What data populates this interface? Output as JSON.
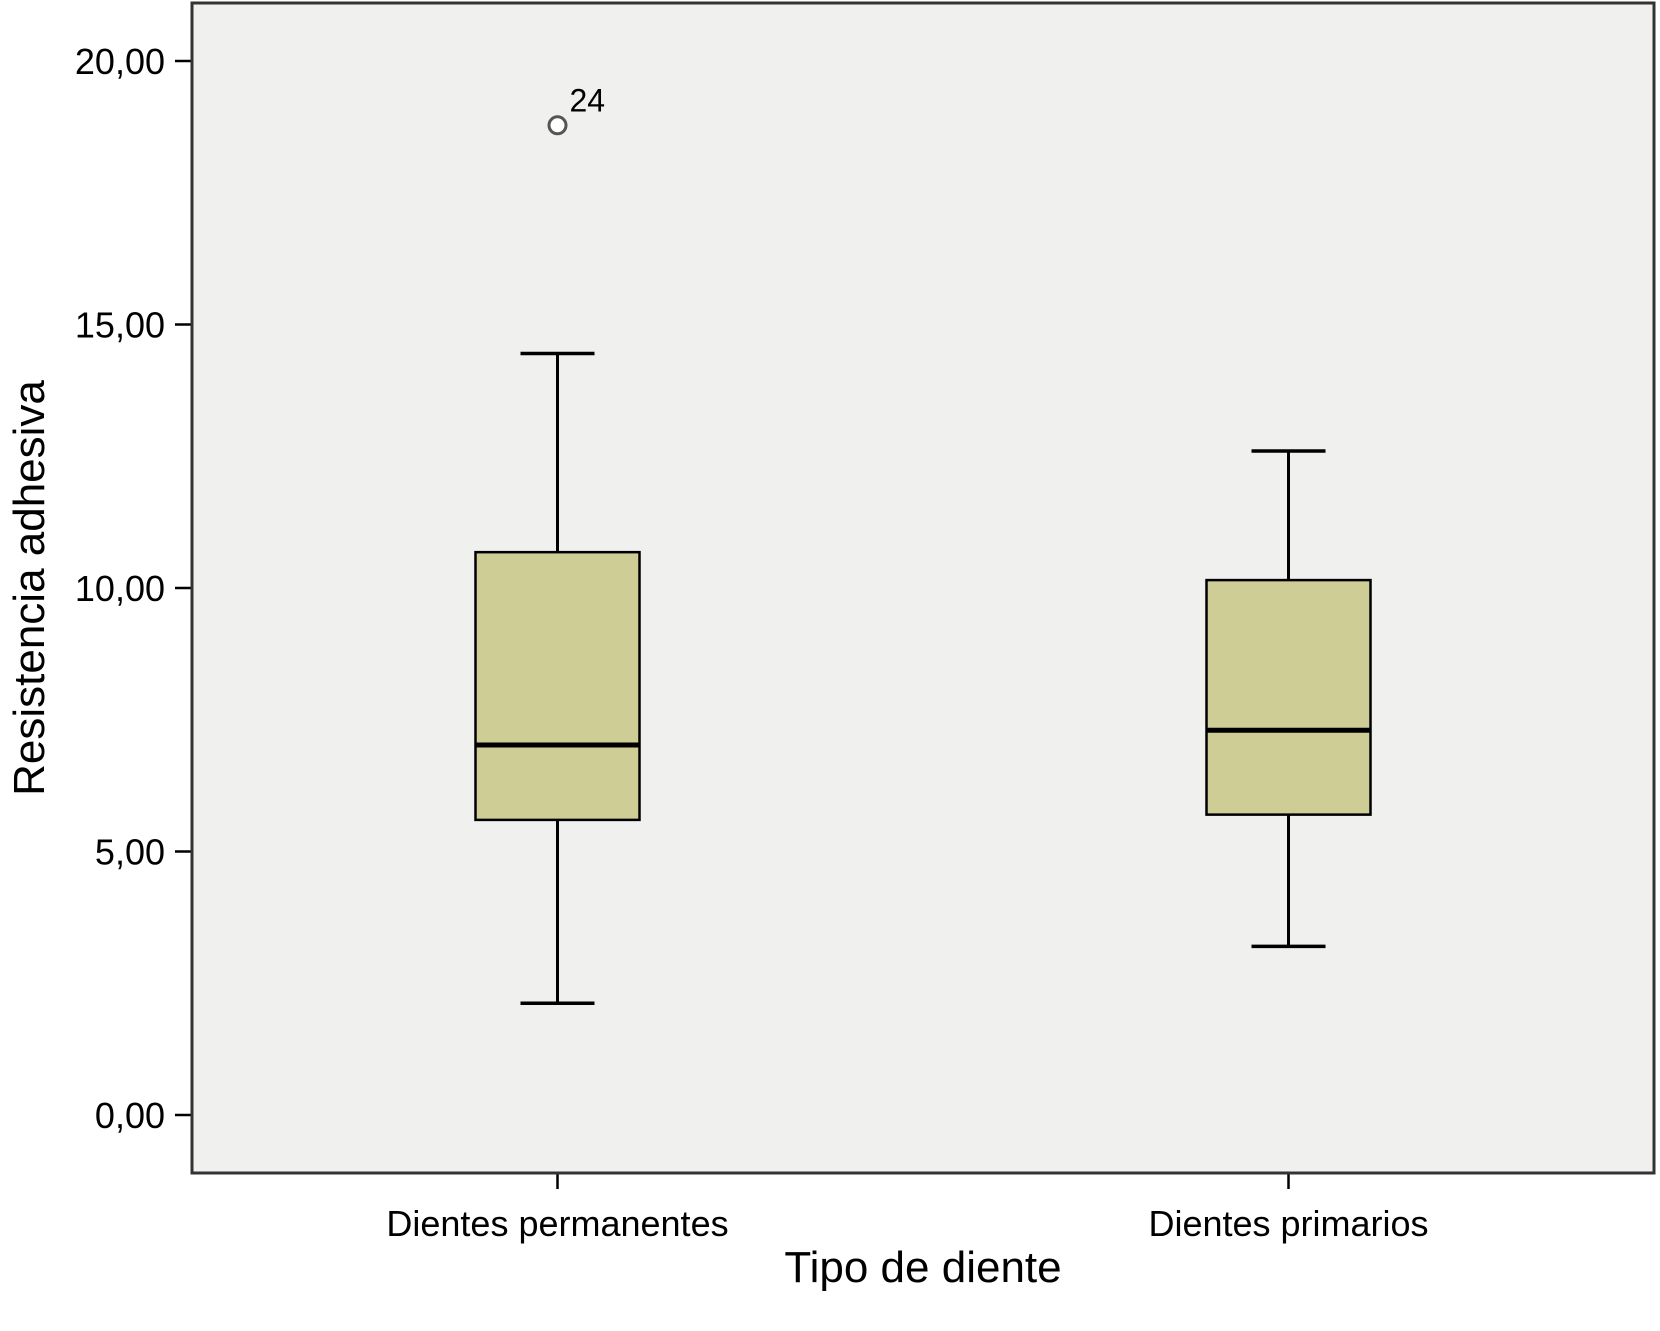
{
  "chart_data": {
    "type": "boxplot",
    "title": "",
    "xlabel": "Tipo de diente",
    "ylabel": "Resistencia adhesiva",
    "ylim": [
      -1.1,
      21.1
    ],
    "yticks": [
      0,
      5,
      10,
      15,
      20
    ],
    "ytick_labels": [
      "0,00",
      "5,00",
      "10,00",
      "15,00",
      "20,00"
    ],
    "categories": [
      "Dientes permanentes",
      "Dientes primarios"
    ],
    "boxes": [
      {
        "category": "Dientes permanentes",
        "whisker_low": 2.12,
        "q1": 5.6,
        "median": 7.02,
        "q3": 10.68,
        "whisker_high": 14.45,
        "outliers": [
          {
            "value": 18.78,
            "label": "24"
          }
        ]
      },
      {
        "category": "Dientes primarios",
        "whisker_low": 3.2,
        "q1": 5.7,
        "median": 7.3,
        "q3": 10.15,
        "whisker_high": 12.6,
        "outliers": []
      }
    ],
    "colors": {
      "box_fill": "#cfcd96",
      "plot_background": "#f0f0ef",
      "stroke": "#000000"
    },
    "grid": false,
    "legend": "none"
  }
}
